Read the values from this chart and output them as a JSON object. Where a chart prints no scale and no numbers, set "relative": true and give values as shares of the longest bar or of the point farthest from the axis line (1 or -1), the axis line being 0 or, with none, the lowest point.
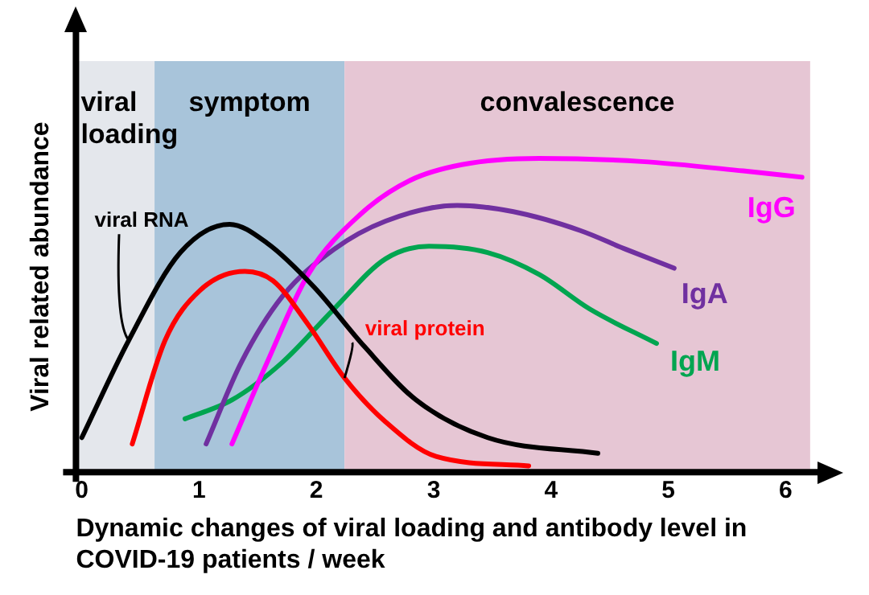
{
  "chart_data": {
    "type": "line",
    "relative": true,
    "marker": "none",
    "xlabel": "Dynamic changes of viral loading and antibody level in COVID-19 patients / week",
    "ylabel": "Viral related abundance",
    "xlim": [
      -0.05,
      6.3
    ],
    "xticks": [
      0,
      1,
      2,
      3,
      4,
      5,
      6
    ],
    "bands": [
      {
        "axis": "x",
        "from": -0.05,
        "to": 0.62,
        "label": "viral loading",
        "color": "#e4e7ec"
      },
      {
        "axis": "x",
        "from": 0.62,
        "to": 2.24,
        "label": "symptom",
        "color": "#a8c4da"
      },
      {
        "axis": "x",
        "from": 2.24,
        "to": 6.21,
        "label": "convalescence",
        "color": "#e6c6d4"
      }
    ],
    "series": [
      {
        "name": "viral RNA",
        "color": "#000000",
        "x": [
          0.0,
          0.4,
          0.84,
          1.26,
          1.58,
          1.98,
          2.41,
          2.85,
          3.46,
          4.4
        ],
        "values": [
          0.11,
          0.42,
          0.7,
          0.79,
          0.73,
          0.59,
          0.4,
          0.23,
          0.11,
          0.06
        ]
      },
      {
        "name": "viral protein",
        "color": "#ff0000",
        "x": [
          0.43,
          0.71,
          1.01,
          1.39,
          1.63,
          1.93,
          2.24,
          2.59,
          3.02,
          3.81
        ],
        "values": [
          0.09,
          0.42,
          0.58,
          0.64,
          0.61,
          0.47,
          0.3,
          0.16,
          0.05,
          0.02
        ]
      },
      {
        "name": "IgG",
        "color": "#ff00ff",
        "x": [
          1.28,
          1.58,
          1.93,
          2.37,
          2.8,
          3.24,
          3.9,
          4.77,
          5.64,
          6.14
        ],
        "values": [
          0.09,
          0.35,
          0.63,
          0.82,
          0.93,
          0.98,
          1.0,
          0.99,
          0.96,
          0.94
        ]
      },
      {
        "name": "IgA",
        "color": "#7030a0",
        "x": [
          1.06,
          1.36,
          1.71,
          2.15,
          2.59,
          3.2,
          3.68,
          4.25,
          4.64,
          5.05
        ],
        "values": [
          0.09,
          0.35,
          0.56,
          0.71,
          0.8,
          0.85,
          0.83,
          0.77,
          0.71,
          0.65
        ]
      },
      {
        "name": "IgM",
        "color": "#00a550",
        "x": [
          0.88,
          1.28,
          1.71,
          2.15,
          2.59,
          2.96,
          3.46,
          3.9,
          4.33,
          4.9
        ],
        "values": [
          0.17,
          0.23,
          0.35,
          0.52,
          0.68,
          0.72,
          0.7,
          0.63,
          0.52,
          0.41
        ]
      }
    ]
  }
}
